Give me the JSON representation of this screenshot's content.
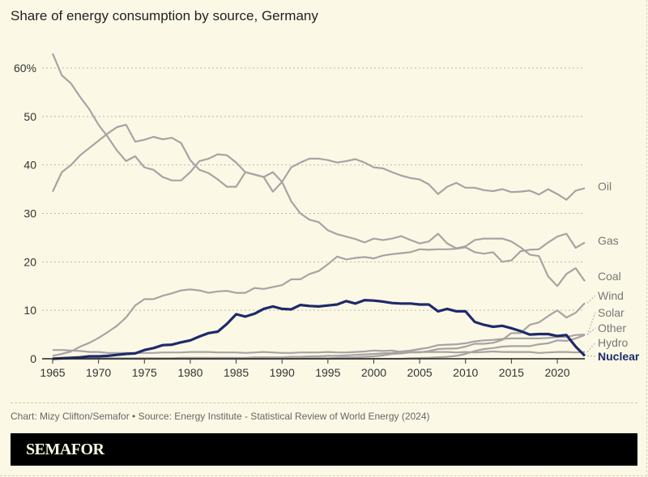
{
  "title": "Share of energy consumption by source, Germany",
  "source": "Chart: Mizy Clifton/Semafor • Source: Energy Institute - Statistical Review of World Energy (2024)",
  "brand": "SEMAFOR",
  "colors": {
    "background": "#fbf9e5",
    "other_lines": "#a8a3a4",
    "nuclear": "#1f2a6b"
  },
  "chart_data": {
    "type": "line",
    "title": "Share of energy consumption by source, Germany",
    "x_start": 1965,
    "x_end": 2023,
    "xlim": [
      1965,
      2023
    ],
    "ylim": [
      0,
      60
    ],
    "x_ticks": [
      "1965",
      "1970",
      "1975",
      "1980",
      "1985",
      "1990",
      "1995",
      "2000",
      "2005",
      "2010",
      "2015",
      "2020"
    ],
    "y_ticks": [
      "0",
      "10",
      "20",
      "30",
      "40",
      "50",
      "60%"
    ],
    "y_tick_values": [
      0,
      10,
      20,
      30,
      40,
      50,
      60
    ],
    "grid": "horizontal dotted",
    "legend": "direct labels at line ends",
    "series": [
      {
        "name": "Oil",
        "values": [
          34.5,
          38.5,
          40,
          42,
          43.5,
          45,
          46.5,
          47.8,
          48.3,
          44.8,
          45.2,
          45.8,
          45.3,
          45.6,
          44.5,
          41,
          39,
          38.3,
          37,
          35.5,
          35.5,
          38.5,
          38,
          37.5,
          34.5,
          36.5,
          39.5,
          40.5,
          41.3,
          41.3,
          41,
          40.5,
          40.8,
          41.2,
          40.5,
          39.5,
          39.3,
          38.5,
          37.8,
          37.3,
          37,
          36,
          34,
          35.5,
          36.3,
          35.3,
          35.3,
          34.8,
          34.6,
          35,
          34.4,
          34.5,
          34.7,
          33.9,
          35,
          34,
          32.8,
          34.7,
          35.2
        ]
      },
      {
        "name": "Gas",
        "values": [
          0.6,
          1,
          1.5,
          2.5,
          3.3,
          4.3,
          5.5,
          6.8,
          8.5,
          11,
          12.3,
          12.3,
          13,
          13.5,
          14.1,
          14.3,
          14.1,
          13.6,
          13.9,
          14,
          13.6,
          13.6,
          14.6,
          14.4,
          14.8,
          15.2,
          16.4,
          16.4,
          17.5,
          18.1,
          19.5,
          21.1,
          20.5,
          20.8,
          21,
          20.7,
          21.3,
          21.6,
          21.8,
          22,
          22.6,
          22.5,
          22.6,
          22.6,
          22.7,
          23,
          22,
          21.7,
          22,
          20,
          20.3,
          22.2,
          22.5,
          22.6,
          24,
          25.2,
          25.8,
          22.9,
          24
        ]
      },
      {
        "name": "Coal",
        "values": [
          63,
          58.5,
          56.8,
          54,
          51.5,
          48.3,
          45.8,
          43,
          40.8,
          41.8,
          39.5,
          39,
          37.5,
          36.8,
          36.8,
          38.5,
          40.8,
          41.3,
          42.2,
          42,
          40.5,
          38.5,
          38,
          37.5,
          38.5,
          36.5,
          32.5,
          30,
          28.7,
          28.2,
          26.5,
          25.7,
          25.2,
          24.7,
          24,
          24.8,
          24.5,
          24.8,
          25.3,
          24.5,
          23.8,
          24.2,
          25.8,
          23.8,
          22.8,
          23.2,
          24.5,
          24.8,
          24.8,
          24.8,
          24.2,
          23,
          21.5,
          21.2,
          17,
          15,
          17.5,
          18.7,
          16
        ]
      },
      {
        "name": "Wind",
        "values": [
          0,
          0,
          0,
          0,
          0,
          0,
          0,
          0,
          0,
          0,
          0,
          0,
          0,
          0,
          0,
          0,
          0,
          0,
          0,
          0,
          0,
          0,
          0,
          0,
          0,
          0,
          0,
          0.05,
          0.1,
          0.1,
          0.1,
          0.2,
          0.3,
          0.3,
          0.4,
          0.5,
          0.7,
          1,
          1.1,
          1.3,
          1.3,
          1.6,
          2,
          2.1,
          2.1,
          2.5,
          3.1,
          3.1,
          3.3,
          3.9,
          5.3,
          5.3,
          7,
          7.5,
          8.8,
          10,
          8.5,
          9.5,
          11.5
        ]
      },
      {
        "name": "Solar",
        "values": [
          0,
          0,
          0,
          0,
          0,
          0,
          0,
          0,
          0,
          0,
          0,
          0,
          0,
          0,
          0,
          0,
          0,
          0,
          0,
          0,
          0,
          0,
          0,
          0,
          0,
          0,
          0,
          0,
          0,
          0,
          0,
          0,
          0,
          0,
          0,
          0,
          0,
          0,
          0,
          0.1,
          0.15,
          0.2,
          0.3,
          0.4,
          0.6,
          1,
          1.6,
          2,
          2.2,
          2.5,
          2.6,
          2.6,
          2.6,
          3,
          3.2,
          3.8,
          3.7,
          4.2,
          4.9
        ]
      },
      {
        "name": "Other",
        "values": [
          0.1,
          0.1,
          0.1,
          0.1,
          0.1,
          0.1,
          0.1,
          0.1,
          0.1,
          0.1,
          0.1,
          0.1,
          0.1,
          0.1,
          0.2,
          0.2,
          0.2,
          0.2,
          0.2,
          0.2,
          0.2,
          0.2,
          0.3,
          0.3,
          0.3,
          0.3,
          0.4,
          0.4,
          0.5,
          0.5,
          0.6,
          0.6,
          0.7,
          0.8,
          0.9,
          1,
          1.1,
          1.2,
          1.5,
          1.7,
          2,
          2.3,
          2.8,
          2.9,
          3,
          3.2,
          3.6,
          3.8,
          3.9,
          4.1,
          4.2,
          4.2,
          4.2,
          4.2,
          4.3,
          4.5,
          4.5,
          4.9,
          5
        ]
      },
      {
        "name": "Hydro",
        "values": [
          1.8,
          1.8,
          1.7,
          1.6,
          1.4,
          1.4,
          1.2,
          1.2,
          1.2,
          1.2,
          1.2,
          1.2,
          1.3,
          1.3,
          1.3,
          1.4,
          1.4,
          1.4,
          1.3,
          1.3,
          1.3,
          1.2,
          1.3,
          1.4,
          1.3,
          1.2,
          1.2,
          1.3,
          1.3,
          1.3,
          1.4,
          1.3,
          1.3,
          1.4,
          1.5,
          1.7,
          1.6,
          1.7,
          1.4,
          1.4,
          1.4,
          1.4,
          1.4,
          1.4,
          1.3,
          1.4,
          1.3,
          1.4,
          1.5,
          1.4,
          1.4,
          1.4,
          1.4,
          1.2,
          1.3,
          1.4,
          1.4,
          1.3,
          1.4
        ]
      },
      {
        "name": "Nuclear",
        "values": [
          0,
          0.1,
          0.2,
          0.3,
          0.5,
          0.5,
          0.6,
          0.8,
          1,
          1.1,
          1.8,
          2.2,
          2.8,
          2.9,
          3.4,
          3.8,
          4.6,
          5.3,
          5.6,
          7.2,
          9.2,
          8.7,
          9.3,
          10.3,
          10.8,
          10.3,
          10.2,
          11.1,
          10.9,
          10.8,
          11,
          11.2,
          11.9,
          11.4,
          12.1,
          12,
          11.8,
          11.5,
          11.4,
          11.4,
          11.2,
          11.2,
          9.8,
          10.3,
          9.8,
          9.8,
          7.6,
          7,
          6.6,
          6.8,
          6.3,
          5.7,
          5,
          5.1,
          5.1,
          4.7,
          4.9,
          2.5,
          0.6
        ]
      }
    ]
  }
}
